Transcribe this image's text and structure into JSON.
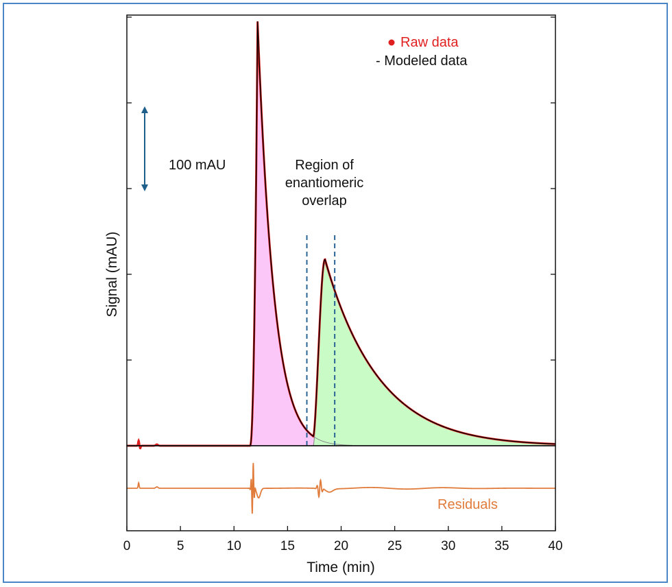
{
  "chart_data": {
    "type": "line",
    "xlabel": "Time (min)",
    "ylabel": "Signal (mAU)",
    "xlim": [
      0,
      40
    ],
    "x_ticks": [
      "0",
      "5",
      "10",
      "15",
      "20",
      "25",
      "30",
      "35",
      "40"
    ],
    "y_ticks_count": 5,
    "legend": {
      "placement": "top-right",
      "raw_label": "Raw data",
      "modeled_label": "- Modeled data"
    },
    "scale_bar_label": "100 mAU",
    "scale_bar_mAU": 100,
    "overlap_region": {
      "label_lines": [
        "Region of",
        "enantiomeric",
        "overlap"
      ],
      "x_start": 16.8,
      "x_end": 19.4
    },
    "residuals_label": "Residuals",
    "series": [
      {
        "name": "Raw data",
        "color": "#e02020"
      },
      {
        "name": "Modeled data",
        "color": "#000000"
      },
      {
        "name": "Residuals",
        "color": "#e07b3a"
      }
    ],
    "peaks": [
      {
        "apex_time": 12.2,
        "height_mAU": 495,
        "fill": "#fbc6f8"
      },
      {
        "apex_time": 18.5,
        "height_mAU": 213,
        "fill": "#c9fbc6"
      }
    ]
  },
  "colors": {
    "frame": "#4a86c5",
    "scale_arrow": "#1f5f8b",
    "dashed_lines": "#2a6496"
  }
}
